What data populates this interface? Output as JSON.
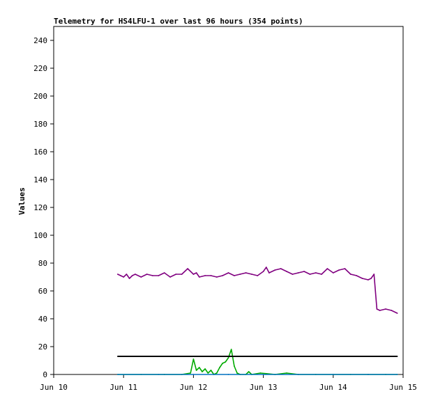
{
  "chart_data": {
    "type": "line",
    "title": "Telemetry for HS4LFU-1 over last 96 hours (354 points)",
    "xlabel": "",
    "ylabel": "Values",
    "xlim": [
      "2019-06-10",
      "2019-06-15"
    ],
    "ylim": [
      0,
      250
    ],
    "x_ticks": [
      "Jun 10",
      "Jun 11",
      "Jun 12",
      "Jun 13",
      "Jun 14",
      "Jun 15"
    ],
    "y_ticks": [
      0,
      20,
      40,
      60,
      80,
      100,
      120,
      140,
      160,
      180,
      200,
      220,
      240
    ],
    "grid": false,
    "legend": false,
    "series": [
      {
        "color": "#800080",
        "x": [
          "2019-06-10T22:00",
          "2019-06-10T23:00",
          "2019-06-11T00:00",
          "2019-06-11T01:00",
          "2019-06-11T02:00",
          "2019-06-11T03:00",
          "2019-06-11T04:00",
          "2019-06-11T06:00",
          "2019-06-11T08:00",
          "2019-06-11T10:00",
          "2019-06-11T12:00",
          "2019-06-11T14:00",
          "2019-06-11T16:00",
          "2019-06-11T18:00",
          "2019-06-11T20:00",
          "2019-06-11T22:00",
          "2019-06-12T00:00",
          "2019-06-12T01:00",
          "2019-06-12T02:00",
          "2019-06-12T04:00",
          "2019-06-12T06:00",
          "2019-06-12T08:00",
          "2019-06-12T10:00",
          "2019-06-12T12:00",
          "2019-06-12T14:00",
          "2019-06-12T16:00",
          "2019-06-12T18:00",
          "2019-06-12T20:00",
          "2019-06-12T22:00",
          "2019-06-13T00:00",
          "2019-06-13T01:00",
          "2019-06-13T02:00",
          "2019-06-13T04:00",
          "2019-06-13T06:00",
          "2019-06-13T08:00",
          "2019-06-13T10:00",
          "2019-06-13T12:00",
          "2019-06-13T14:00",
          "2019-06-13T16:00",
          "2019-06-13T18:00",
          "2019-06-13T20:00",
          "2019-06-13T22:00",
          "2019-06-14T00:00",
          "2019-06-14T02:00",
          "2019-06-14T04:00",
          "2019-06-14T06:00",
          "2019-06-14T08:00",
          "2019-06-14T10:00",
          "2019-06-14T12:00",
          "2019-06-14T13:00",
          "2019-06-14T14:00",
          "2019-06-14T15:00",
          "2019-06-14T16:00",
          "2019-06-14T18:00",
          "2019-06-14T20:00",
          "2019-06-14T22:00"
        ],
        "values": [
          72,
          71,
          70,
          72,
          69,
          71,
          72,
          70,
          72,
          71,
          71,
          73,
          70,
          72,
          72,
          76,
          72,
          73,
          70,
          71,
          71,
          70,
          71,
          73,
          71,
          72,
          73,
          72,
          71,
          74,
          77,
          73,
          75,
          76,
          74,
          72,
          73,
          74,
          72,
          73,
          72,
          76,
          73,
          75,
          76,
          72,
          71,
          69,
          68,
          69,
          72,
          47,
          46,
          47,
          46,
          44
        ]
      },
      {
        "color": "#00aa00",
        "x": [
          "2019-06-10T22:00",
          "2019-06-11T06:00",
          "2019-06-11T14:00",
          "2019-06-11T20:00",
          "2019-06-11T23:00",
          "2019-06-12T00:00",
          "2019-06-12T01:00",
          "2019-06-12T02:00",
          "2019-06-12T03:00",
          "2019-06-12T04:00",
          "2019-06-12T05:00",
          "2019-06-12T06:00",
          "2019-06-12T07:00",
          "2019-06-12T08:00",
          "2019-06-12T09:00",
          "2019-06-12T10:00",
          "2019-06-12T11:00",
          "2019-06-12T12:00",
          "2019-06-12T13:00",
          "2019-06-12T14:00",
          "2019-06-12T15:00",
          "2019-06-12T16:00",
          "2019-06-12T18:00",
          "2019-06-12T19:00",
          "2019-06-12T20:00",
          "2019-06-12T23:00",
          "2019-06-13T04:00",
          "2019-06-13T08:00",
          "2019-06-13T12:00",
          "2019-06-13T18:00",
          "2019-06-14T00:00",
          "2019-06-14T06:00",
          "2019-06-14T12:00",
          "2019-06-14T18:00",
          "2019-06-14T22:00"
        ],
        "values": [
          0,
          0,
          0,
          0,
          1,
          11,
          3,
          5,
          2,
          4,
          1,
          3,
          0,
          1,
          5,
          8,
          9,
          12,
          18,
          6,
          1,
          0,
          0,
          2,
          0,
          1,
          0,
          1,
          0,
          0,
          0,
          0,
          0,
          0,
          0
        ]
      },
      {
        "color": "#0070c0",
        "x": [
          "2019-06-10T22:00",
          "2019-06-11T12:00",
          "2019-06-12T00:00",
          "2019-06-12T12:00",
          "2019-06-13T00:00",
          "2019-06-13T12:00",
          "2019-06-14T00:00",
          "2019-06-14T12:00",
          "2019-06-14T22:00"
        ],
        "values": [
          0,
          0,
          0,
          0,
          0,
          0,
          0,
          0,
          0
        ]
      },
      {
        "color": "#000000",
        "x": [
          "2019-06-10T22:00",
          "2019-06-14T22:00"
        ],
        "values": [
          13,
          13
        ]
      }
    ]
  }
}
